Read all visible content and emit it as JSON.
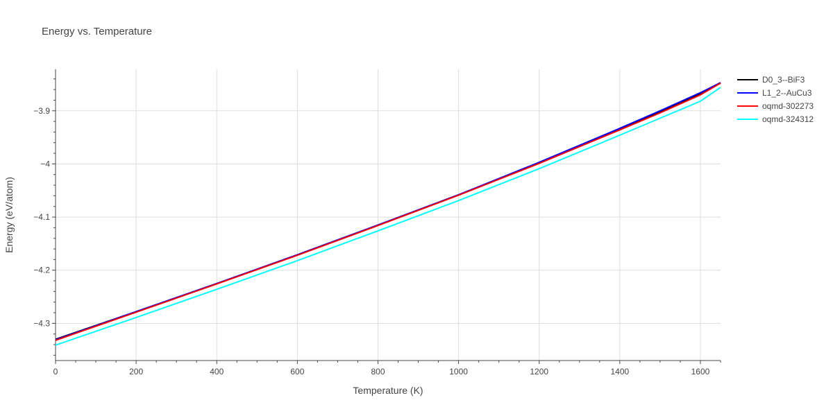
{
  "chart_data": {
    "type": "line",
    "title": "Energy vs. Temperature",
    "xlabel": "Temperature (K)",
    "ylabel": "Energy (eV/atom)",
    "xlim": [
      0,
      1650
    ],
    "ylim": [
      -4.37,
      -3.822
    ],
    "xticks": [
      0,
      200,
      400,
      600,
      800,
      1000,
      1200,
      1400,
      1600
    ],
    "xtick_labels": [
      "0",
      "200",
      "400",
      "600",
      "800",
      "1000",
      "1200",
      "1400",
      "1600"
    ],
    "yticks": [
      -4.3,
      -4.2,
      -4.1,
      -4.0,
      -3.9
    ],
    "ytick_labels": [
      "−4.3",
      "−4.2",
      "−4.1",
      "−4",
      "−3.9"
    ],
    "grid": true,
    "legend_position": "top-right",
    "series": [
      {
        "name": "D0_3--BiF3",
        "color": "#000000",
        "x": [
          0,
          200,
          400,
          600,
          800,
          1000,
          1200,
          1400,
          1500,
          1600,
          1650
        ],
        "y": [
          -4.33,
          -4.278,
          -4.225,
          -4.171,
          -4.115,
          -4.058,
          -3.998,
          -3.935,
          -3.902,
          -3.868,
          -3.848
        ]
      },
      {
        "name": "L1_2--AuCu3",
        "color": "#0000ff",
        "x": [
          0,
          200,
          400,
          600,
          800,
          1000,
          1200,
          1400,
          1500,
          1600,
          1650
        ],
        "y": [
          -4.331,
          -4.278,
          -4.225,
          -4.171,
          -4.115,
          -4.058,
          -3.997,
          -3.933,
          -3.9,
          -3.866,
          -3.847
        ]
      },
      {
        "name": "oqmd-302273",
        "color": "#ff0000",
        "x": [
          0,
          200,
          400,
          600,
          800,
          1000,
          1200,
          1400,
          1500,
          1600,
          1650
        ],
        "y": [
          -4.332,
          -4.279,
          -4.226,
          -4.172,
          -4.116,
          -4.059,
          -3.999,
          -3.936,
          -3.904,
          -3.87,
          -3.848
        ]
      },
      {
        "name": "oqmd-324312",
        "color": "#00ffff",
        "x": [
          0,
          200,
          400,
          600,
          800,
          1000,
          1200,
          1400,
          1500,
          1600,
          1650
        ],
        "y": [
          -4.341,
          -4.289,
          -4.236,
          -4.182,
          -4.126,
          -4.069,
          -4.009,
          -3.946,
          -3.914,
          -3.882,
          -3.856
        ]
      }
    ]
  }
}
